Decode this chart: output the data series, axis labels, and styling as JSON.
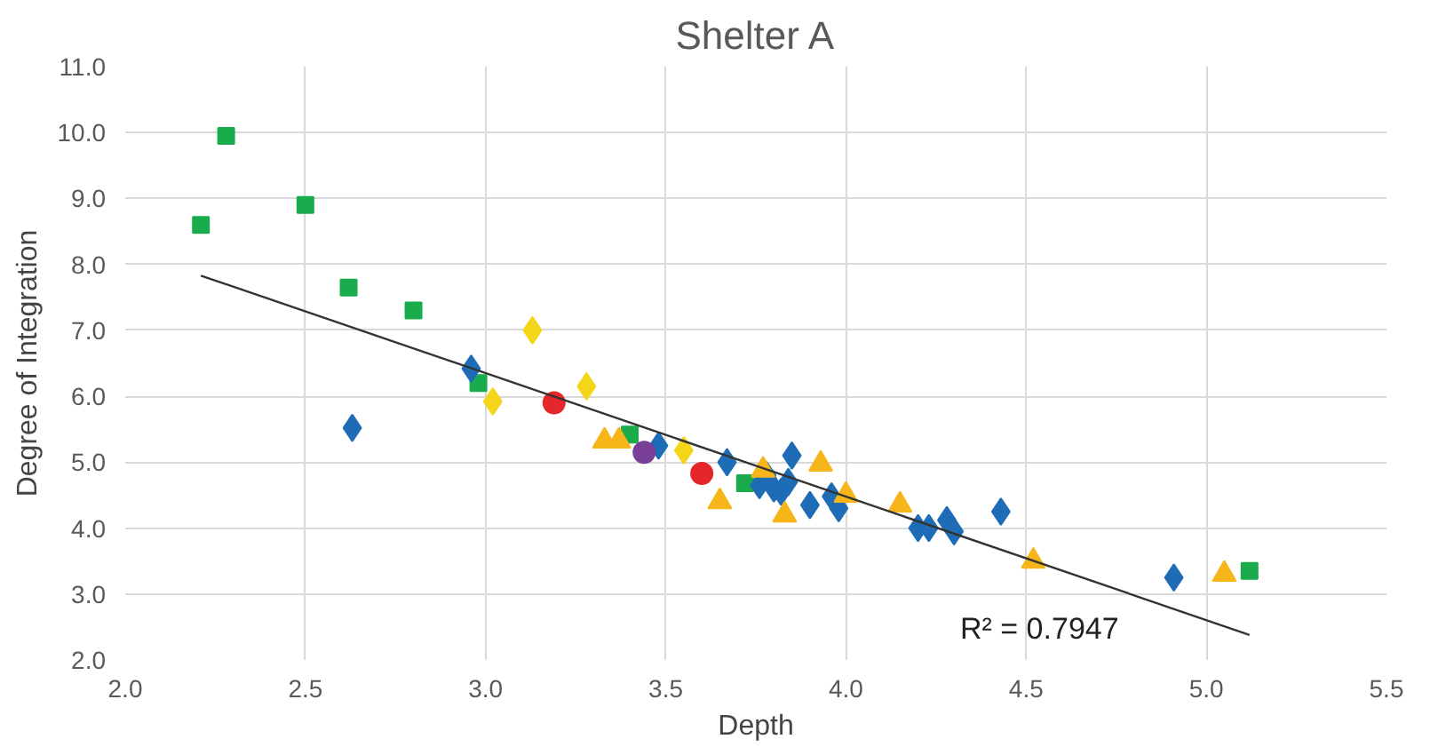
{
  "chart_data": {
    "type": "scatter",
    "title": "Shelter A",
    "xlabel": "Depth",
    "ylabel": "Degree of Integration",
    "xlim": [
      2.0,
      5.5
    ],
    "ylim": [
      2.0,
      11.0
    ],
    "xticks": [
      {
        "value": 2.0,
        "label": "2.0"
      },
      {
        "value": 2.5,
        "label": "2.5"
      },
      {
        "value": 3.0,
        "label": "3.0"
      },
      {
        "value": 3.5,
        "label": "3.5"
      },
      {
        "value": 4.0,
        "label": "4.0"
      },
      {
        "value": 4.5,
        "label": "4.5"
      },
      {
        "value": 5.0,
        "label": "5.0"
      },
      {
        "value": 5.5,
        "label": "5.5"
      }
    ],
    "yticks": [
      {
        "value": 2.0,
        "label": "2.0"
      },
      {
        "value": 3.0,
        "label": "3.0"
      },
      {
        "value": 4.0,
        "label": "4.0"
      },
      {
        "value": 5.0,
        "label": "5.0"
      },
      {
        "value": 6.0,
        "label": "6.0"
      },
      {
        "value": 7.0,
        "label": "7.0"
      },
      {
        "value": 8.0,
        "label": "8.0"
      },
      {
        "value": 9.0,
        "label": "9.0"
      },
      {
        "value": 10.0,
        "label": "10.0"
      },
      {
        "value": 11.0,
        "label": "11.0"
      }
    ],
    "grid": true,
    "annotations": [
      "R² = 0.7947"
    ],
    "series": [
      {
        "marker": "square",
        "color": "#1aac4c",
        "x": [
          2.21,
          2.28,
          2.5,
          2.62,
          2.8,
          2.98,
          3.4,
          3.72,
          5.12
        ],
        "values": [
          8.6,
          9.95,
          8.9,
          7.65,
          7.3,
          6.2,
          5.42,
          4.68,
          3.35
        ]
      },
      {
        "marker": "diamond",
        "color": "#1f6cb6",
        "x": [
          2.63,
          2.96,
          3.48,
          3.67,
          3.76,
          3.78,
          3.8,
          3.82,
          3.84,
          3.85,
          3.9,
          3.96,
          3.98,
          4.2,
          4.23,
          4.28,
          4.3,
          4.43,
          4.91
        ],
        "values": [
          5.52,
          6.42,
          5.25,
          5.0,
          4.65,
          4.8,
          4.6,
          4.55,
          4.7,
          5.1,
          4.35,
          4.48,
          4.3,
          4.0,
          4.0,
          4.12,
          3.95,
          4.25,
          3.25
        ]
      },
      {
        "marker": "diamond",
        "color": "#f5d51a",
        "x": [
          3.02,
          3.13,
          3.28,
          3.55
        ],
        "values": [
          5.92,
          7.0,
          6.15,
          5.18
        ]
      },
      {
        "marker": "triangle",
        "color": "#f6b61a",
        "x": [
          3.33,
          3.37,
          3.65,
          3.77,
          3.83,
          3.93,
          4.0,
          4.15,
          4.52,
          5.05
        ],
        "values": [
          5.32,
          5.32,
          4.4,
          4.88,
          4.2,
          4.97,
          4.5,
          4.35,
          3.5,
          3.3
        ]
      },
      {
        "marker": "circle",
        "color": "#e5262b",
        "x": [
          3.19,
          3.6
        ],
        "values": [
          5.9,
          4.83
        ]
      },
      {
        "marker": "circle",
        "color": "#7a3f98",
        "x": [
          3.44
        ],
        "values": [
          5.15
        ]
      },
      {
        "type": "line",
        "marker": "none",
        "color": "#333333",
        "x": [
          2.21,
          5.12
        ],
        "values": [
          7.83,
          2.38
        ]
      }
    ]
  }
}
